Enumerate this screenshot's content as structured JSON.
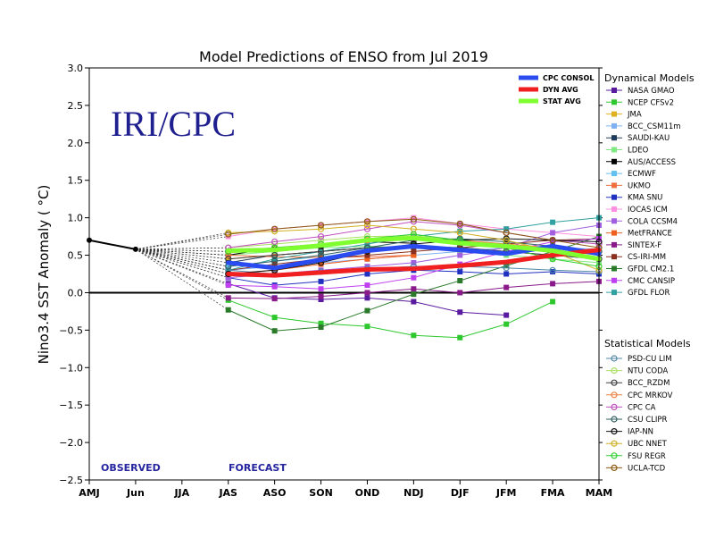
{
  "chart_data": {
    "type": "line",
    "title": "Model Predictions of ENSO from Jul 2019",
    "watermark": "IRI/CPC",
    "ylabel": "Nino3.4 SST Anomaly ( °C)",
    "xlabel": "",
    "ylim": [
      -2.5,
      3.0
    ],
    "y_ticks": [
      "3.0",
      "2.5",
      "2.0",
      "1.5",
      "1.0",
      "0.5",
      "0.0",
      "−0.5",
      "−1.0",
      "−1.5",
      "−2.0",
      "−2.5"
    ],
    "categories": [
      "AMJ",
      "Jun",
      "JJA",
      "JAS",
      "ASO",
      "SON",
      "OND",
      "NDJ",
      "DJF",
      "JFM",
      "FMA",
      "MAM"
    ],
    "annotations": {
      "observed": "OBSERVED",
      "forecast": "FORECAST"
    },
    "observed": [
      0.7,
      0.58
    ],
    "consensus_legend": [
      {
        "name": "CPC CONSOL",
        "color": "#2a4bf0"
      },
      {
        "name": "DYN AVG",
        "color": "#f02020"
      },
      {
        "name": "STAT AVG",
        "color": "#80ff30"
      }
    ],
    "consensus": [
      {
        "name": "CPC CONSOL",
        "color": "#2a4bf0",
        "start": 3,
        "values": [
          0.4,
          0.33,
          0.44,
          0.56,
          0.62,
          0.57,
          0.52,
          0.62,
          0.52
        ]
      },
      {
        "name": "DYN AVG",
        "color": "#f02020",
        "start": 3,
        "values": [
          0.25,
          0.23,
          0.27,
          0.31,
          0.32,
          0.36,
          0.41,
          0.5,
          0.57
        ]
      },
      {
        "name": "STAT AVG",
        "color": "#80ff30",
        "start": 3,
        "values": [
          0.56,
          0.57,
          0.63,
          0.7,
          0.73,
          0.66,
          0.62,
          0.56,
          0.45
        ]
      }
    ],
    "legend_dynamical_title": "Dynamical Models",
    "legend_statistical_title": "Statistical Models",
    "dynamical_models": [
      {
        "name": "NASA GMAO",
        "color": "#5a1aa0",
        "marker": "square",
        "start": 3,
        "values": [
          0.12,
          -0.07,
          -0.09,
          -0.07,
          -0.12,
          -0.26,
          -0.3
        ]
      },
      {
        "name": "NCEP CFSv2",
        "color": "#2ec82e",
        "marker": "square",
        "start": 3,
        "values": [
          -0.1,
          -0.33,
          -0.41,
          -0.45,
          -0.57,
          -0.6,
          -0.42,
          -0.12
        ]
      },
      {
        "name": "JMA",
        "color": "#e0b020",
        "marker": "square",
        "start": 3,
        "values": [
          0.45,
          0.5,
          0.55,
          0.6,
          0.62
        ]
      },
      {
        "name": "BCC_CSM11m",
        "color": "#7fb0f0",
        "marker": "square",
        "start": 3,
        "values": [
          0.3,
          0.35,
          0.4,
          0.45,
          0.5,
          0.55,
          0.6,
          0.6,
          0.58
        ]
      },
      {
        "name": "SAUDI-KAU",
        "color": "#1f3a5a",
        "marker": "square",
        "start": 3,
        "values": [
          0.4,
          0.5,
          0.55,
          0.6,
          0.62,
          0.6,
          0.55,
          0.5,
          0.45
        ]
      },
      {
        "name": "LDEO",
        "color": "#80e880",
        "marker": "square",
        "start": 3,
        "values": [
          0.5,
          0.55,
          0.6,
          0.62,
          0.6,
          0.55,
          0.5,
          0.45,
          0.4
        ]
      },
      {
        "name": "AUS/ACCESS",
        "color": "#000000",
        "marker": "square",
        "start": 3,
        "values": [
          0.5,
          0.6,
          0.62,
          0.68,
          0.66
        ]
      },
      {
        "name": "ECMWF",
        "color": "#60c0f0",
        "marker": "square",
        "start": 3,
        "values": [
          0.35,
          0.42,
          0.48,
          0.55,
          0.6
        ]
      },
      {
        "name": "UKMO",
        "color": "#f07040",
        "marker": "square",
        "start": 3,
        "values": [
          0.5,
          0.48,
          0.47,
          0.48,
          0.5
        ]
      },
      {
        "name": "KMA SNU",
        "color": "#2030c0",
        "marker": "square",
        "start": 3,
        "values": [
          0.2,
          0.1,
          0.15,
          0.25,
          0.3,
          0.28,
          0.25,
          0.28,
          0.25
        ]
      },
      {
        "name": "IOCAS ICM",
        "color": "#ff90e0",
        "marker": "square",
        "start": 3,
        "values": [
          0.75,
          0.85,
          0.9,
          0.95,
          1.0,
          0.92,
          0.85,
          0.8,
          0.75
        ]
      },
      {
        "name": "COLA CCSM4",
        "color": "#a060e0",
        "marker": "square",
        "start": 3,
        "values": [
          0.2,
          0.25,
          0.3,
          0.35,
          0.4,
          0.5,
          0.6,
          0.8,
          0.9
        ]
      },
      {
        "name": "MetFRANCE",
        "color": "#f06020",
        "marker": "square",
        "start": 3,
        "values": [
          0.25,
          0.3,
          0.38,
          0.45,
          0.5
        ]
      },
      {
        "name": "SINTEX-F",
        "color": "#8a1a8a",
        "marker": "square",
        "start": 3,
        "values": [
          -0.07,
          -0.08,
          -0.05,
          0.0,
          0.05,
          0.0,
          0.07,
          0.12,
          0.15
        ]
      },
      {
        "name": "CS-IRI-MM",
        "color": "#8a3020",
        "marker": "square",
        "start": 3,
        "values": [
          0.3,
          0.38,
          0.45,
          0.5,
          0.55,
          0.6,
          0.65,
          0.7,
          0.72
        ]
      },
      {
        "name": "GFDL CM2.1",
        "color": "#2a7a2a",
        "marker": "square",
        "start": 3,
        "values": [
          -0.23,
          -0.51,
          -0.46,
          -0.24,
          -0.02,
          0.16,
          0.36,
          0.55,
          0.75
        ]
      },
      {
        "name": "CMC CANSIP",
        "color": "#c040f0",
        "marker": "square",
        "start": 3,
        "values": [
          0.1,
          0.08,
          0.05,
          0.1,
          0.2,
          0.38,
          0.55,
          0.68,
          0.72
        ]
      },
      {
        "name": "GFDL FLOR",
        "color": "#30a0a0",
        "marker": "square",
        "start": 3,
        "values": [
          0.3,
          0.45,
          0.55,
          0.65,
          0.75,
          0.82,
          0.85,
          0.94,
          1.0
        ]
      }
    ],
    "statistical_models": [
      {
        "name": "PSD-CU LIM",
        "color": "#5088a8",
        "marker": "circle",
        "start": 3,
        "values": [
          0.3,
          0.25,
          0.28,
          0.32,
          0.35,
          0.35,
          0.33,
          0.3,
          0.28
        ]
      },
      {
        "name": "NTU CODA",
        "color": "#a8e060",
        "marker": "circle",
        "start": 3,
        "values": [
          0.6,
          0.65,
          0.7,
          0.75,
          0.76,
          0.7,
          0.65,
          0.55,
          0.45
        ]
      },
      {
        "name": "BCC_RZDM",
        "color": "#404040",
        "marker": "circle",
        "start": 3,
        "values": [
          0.45,
          0.5,
          0.55,
          0.6,
          0.62,
          0.6,
          0.55,
          0.5,
          0.45
        ]
      },
      {
        "name": "CPC MRKOV",
        "color": "#f08040",
        "marker": "circle",
        "start": 3,
        "values": [
          0.55,
          0.6,
          0.65,
          0.7,
          0.72,
          0.7,
          0.65,
          0.6,
          0.55
        ]
      },
      {
        "name": "CPC CA",
        "color": "#c050c0",
        "marker": "circle",
        "start": 3,
        "values": [
          0.6,
          0.68,
          0.75,
          0.85,
          0.95,
          0.9,
          0.8,
          0.7,
          0.65
        ]
      },
      {
        "name": "CSU CLIPR",
        "color": "#306060",
        "marker": "circle",
        "start": 3,
        "values": [
          0.35,
          0.42,
          0.5,
          0.6,
          0.7,
          0.72,
          0.68,
          0.62,
          0.55
        ]
      },
      {
        "name": "IAP-NN",
        "color": "#101010",
        "marker": "circle",
        "start": 3,
        "values": [
          0.25,
          0.3,
          0.4,
          0.55,
          0.65,
          0.7,
          0.72,
          0.7,
          0.68
        ]
      },
      {
        "name": "UBC NNET",
        "color": "#d0b020",
        "marker": "circle",
        "start": 3,
        "values": [
          0.8,
          0.82,
          0.85,
          0.9,
          0.85,
          0.8,
          0.7,
          0.55,
          0.3
        ]
      },
      {
        "name": "FSU REGR",
        "color": "#30d030",
        "marker": "circle",
        "start": 3,
        "values": [
          0.55,
          0.6,
          0.65,
          0.72,
          0.78,
          0.7,
          0.6,
          0.45,
          0.35
        ]
      },
      {
        "name": "UCLA-TCD",
        "color": "#8a5a10",
        "marker": "circle",
        "start": 3,
        "values": [
          0.78,
          0.85,
          0.9,
          0.95,
          0.98,
          0.92,
          0.8,
          0.7,
          0.6
        ]
      }
    ],
    "grid": false,
    "legend_position": "right"
  }
}
